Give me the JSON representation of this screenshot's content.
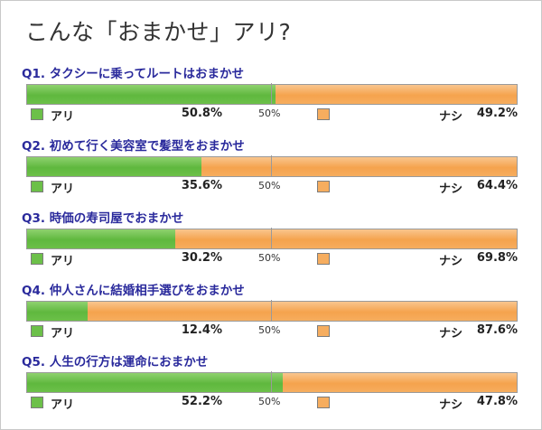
{
  "title": "こんな「おまかせ」アリ?",
  "chart_data": {
    "type": "bar",
    "title": "こんな「おまかせ」アリ?",
    "orientation": "horizontal-stacked-100",
    "midline_label": "50%",
    "series_labels": {
      "yes": "アリ",
      "no": "ナシ"
    },
    "colors": {
      "yes": "#6cc049",
      "no": "#f6ad5f",
      "question": "#2a2a9c"
    },
    "questions": [
      {
        "label": "Q1. タクシーに乗ってルートはおまかせ",
        "yes": 50.8,
        "no": 49.2,
        "yes_text": "50.8%",
        "no_text": "49.2%"
      },
      {
        "label": "Q2. 初めて行く美容室で髪型をおまかせ",
        "yes": 35.6,
        "no": 64.4,
        "yes_text": "35.6%",
        "no_text": "64.4%"
      },
      {
        "label": "Q3. 時価の寿司屋でおまかせ",
        "yes": 30.2,
        "no": 69.8,
        "yes_text": "30.2%",
        "no_text": "69.8%"
      },
      {
        "label": "Q4. 仲人さんに結婚相手選びをおまかせ",
        "yes": 12.4,
        "no": 87.6,
        "yes_text": "12.4%",
        "no_text": "87.6%"
      },
      {
        "label": "Q5. 人生の行方は運命におまかせ",
        "yes": 52.2,
        "no": 47.8,
        "yes_text": "52.2%",
        "no_text": "47.8%"
      }
    ]
  }
}
